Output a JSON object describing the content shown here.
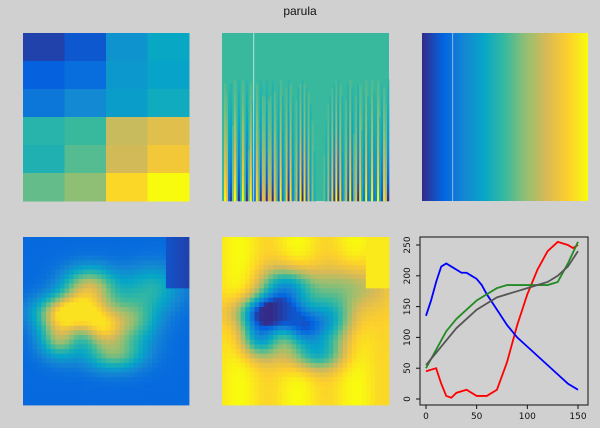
{
  "title": "parula",
  "palette": [
    "#352a87",
    "#0363e1",
    "#1485d4",
    "#06a7c6",
    "#38b99e",
    "#92bf73",
    "#d9ba56",
    "#fcce2e",
    "#f9fb0e"
  ],
  "panels": {
    "grid_pattern": [
      [
        0.05,
        0.1,
        0.3,
        0.38
      ],
      [
        0.12,
        0.16,
        0.32,
        0.36
      ],
      [
        0.2,
        0.26,
        0.34,
        0.4
      ],
      [
        0.46,
        0.5,
        0.72,
        0.78
      ],
      [
        0.44,
        0.54,
        0.74,
        0.84
      ],
      [
        0.56,
        0.62,
        0.9,
        1.0
      ]
    ],
    "stripes": "vertical-frequency-pattern",
    "gradient": "horizontal-gradient",
    "volcano_1": "heatmap",
    "volcano_2": "inverse-heatmap"
  },
  "chart_data": {
    "type": "line",
    "title": "",
    "xlabel": "",
    "ylabel": "",
    "xlim": [
      0,
      155
    ],
    "ylim": [
      -5,
      260
    ],
    "xticks": [
      0,
      50,
      100,
      150
    ],
    "yticks": [
      0,
      50,
      100,
      150,
      200,
      250
    ],
    "series": [
      {
        "color": "#ff0000",
        "x": [
          0,
          10,
          15,
          20,
          25,
          30,
          40,
          50,
          60,
          70,
          80,
          90,
          100,
          110,
          120,
          130,
          140,
          145,
          150
        ],
        "y": [
          45,
          50,
          25,
          5,
          2,
          10,
          15,
          5,
          5,
          15,
          60,
          120,
          170,
          210,
          240,
          255,
          250,
          245,
          250
        ]
      },
      {
        "color": "#0000ff",
        "x": [
          0,
          5,
          10,
          15,
          20,
          25,
          30,
          35,
          40,
          45,
          50,
          55,
          60,
          70,
          80,
          90,
          100,
          110,
          120,
          130,
          140,
          150
        ],
        "y": [
          135,
          160,
          190,
          215,
          220,
          215,
          210,
          205,
          205,
          200,
          195,
          185,
          170,
          145,
          120,
          100,
          85,
          70,
          55,
          40,
          25,
          15
        ]
      },
      {
        "color": "#228B22",
        "x": [
          0,
          5,
          10,
          15,
          20,
          25,
          30,
          40,
          50,
          60,
          70,
          80,
          90,
          100,
          110,
          120,
          130,
          140,
          150
        ],
        "y": [
          50,
          65,
          80,
          95,
          110,
          120,
          130,
          145,
          160,
          170,
          180,
          185,
          185,
          185,
          185,
          185,
          190,
          220,
          255
        ]
      },
      {
        "color": "#555555",
        "x": [
          0,
          10,
          20,
          30,
          40,
          50,
          60,
          70,
          80,
          90,
          100,
          110,
          120,
          130,
          140,
          150
        ],
        "y": [
          55,
          75,
          95,
          115,
          130,
          145,
          155,
          165,
          170,
          175,
          180,
          185,
          190,
          200,
          215,
          240
        ]
      }
    ]
  }
}
